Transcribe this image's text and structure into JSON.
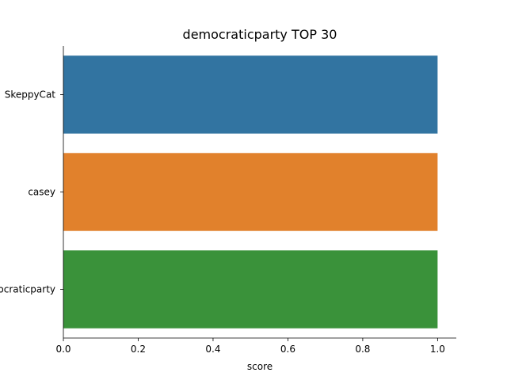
{
  "chart_data": {
    "type": "bar",
    "orientation": "horizontal",
    "title": "democraticparty TOP 30",
    "xlabel": "score",
    "ylabel": "",
    "categories": [
      "SkeppyCat",
      "casey",
      "democraticparty"
    ],
    "values": [
      1.0,
      1.0,
      1.0
    ],
    "colors": [
      "#3274a1",
      "#e1812c",
      "#3a923a"
    ],
    "xlim": [
      0,
      1.05
    ],
    "xticks": [
      "0.0",
      "0.2",
      "0.4",
      "0.6",
      "0.8",
      "1.0"
    ],
    "grid": false
  }
}
